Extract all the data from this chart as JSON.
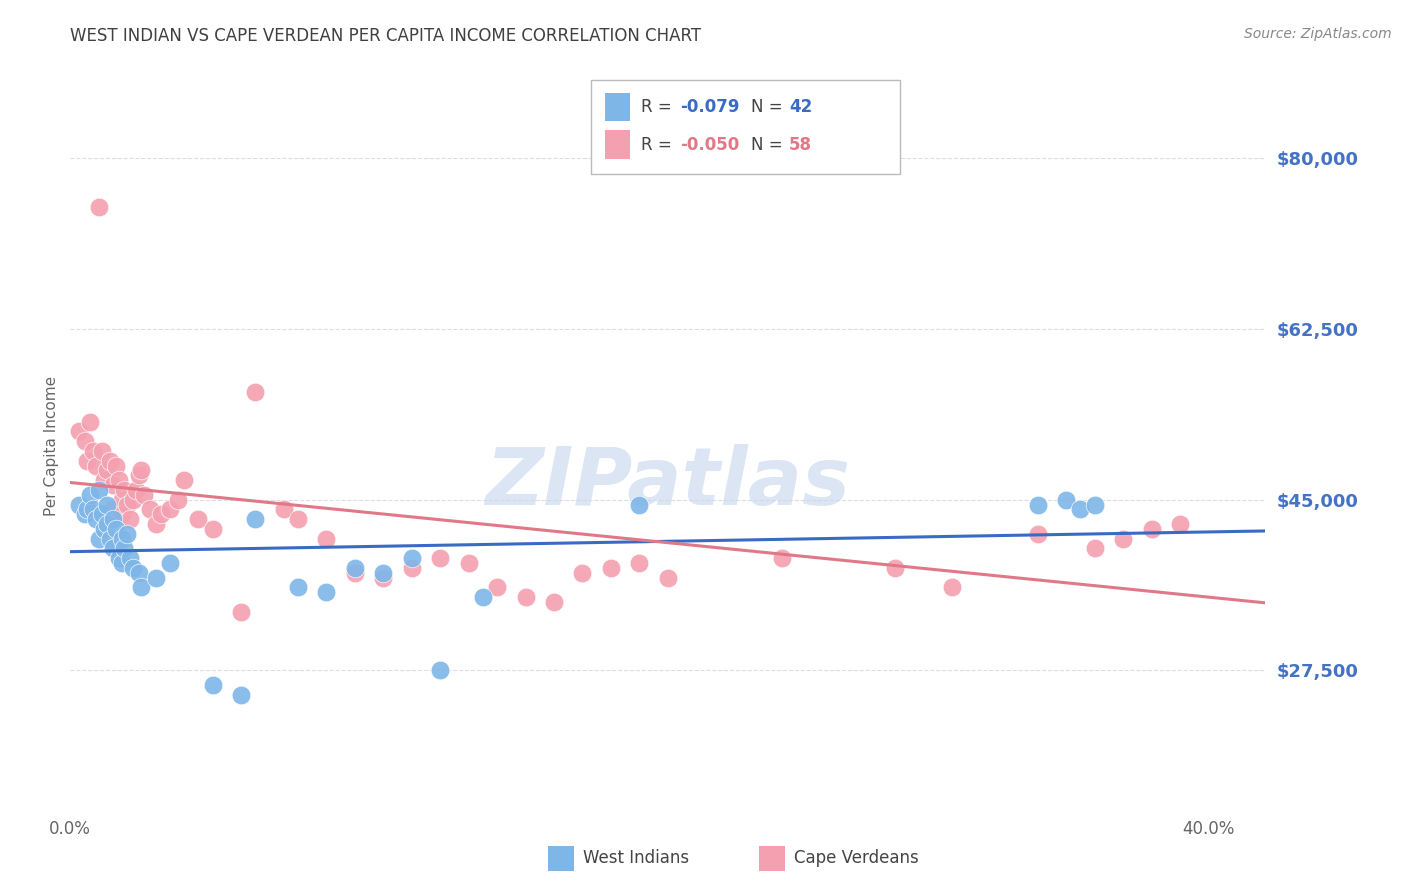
{
  "title": "WEST INDIAN VS CAPE VERDEAN PER CAPITA INCOME CORRELATION CHART",
  "source": "Source: ZipAtlas.com",
  "ylabel": "Per Capita Income",
  "ytick_labels": [
    "$27,500",
    "$45,000",
    "$62,500",
    "$80,000"
  ],
  "ytick_values": [
    27500,
    45000,
    62500,
    80000
  ],
  "ylim": [
    13000,
    88000
  ],
  "xlim": [
    0.0,
    0.42
  ],
  "west_indian_color": "#7EB6E8",
  "cape_verdean_color": "#F4A0B0",
  "west_indian_line_color": "#3A6BC4",
  "cape_verdean_line_color": "#E07888",
  "watermark": "ZIPatlas",
  "background_color": "#FFFFFF",
  "grid_color": "#DDDDDD",
  "title_color": "#404040",
  "axis_color": "#4472C4",
  "west_indian_x": [
    0.003,
    0.005,
    0.006,
    0.007,
    0.008,
    0.009,
    0.01,
    0.01,
    0.011,
    0.012,
    0.013,
    0.013,
    0.014,
    0.015,
    0.015,
    0.016,
    0.017,
    0.018,
    0.018,
    0.019,
    0.02,
    0.021,
    0.022,
    0.024,
    0.025,
    0.03,
    0.035,
    0.05,
    0.06,
    0.065,
    0.08,
    0.09,
    0.1,
    0.11,
    0.12,
    0.13,
    0.145,
    0.2,
    0.34,
    0.35,
    0.355,
    0.36
  ],
  "west_indian_y": [
    44500,
    43500,
    44000,
    45500,
    44000,
    43000,
    46000,
    41000,
    43500,
    42000,
    44500,
    42500,
    41000,
    43000,
    40000,
    42000,
    39000,
    41000,
    38500,
    40000,
    41500,
    39000,
    38000,
    37500,
    36000,
    37000,
    38500,
    26000,
    25000,
    43000,
    36000,
    35500,
    38000,
    37500,
    39000,
    27500,
    35000,
    44500,
    44500,
    45000,
    44000,
    44500
  ],
  "cape_verdean_x": [
    0.003,
    0.005,
    0.006,
    0.007,
    0.008,
    0.009,
    0.01,
    0.011,
    0.012,
    0.013,
    0.014,
    0.015,
    0.015,
    0.016,
    0.017,
    0.018,
    0.018,
    0.019,
    0.02,
    0.021,
    0.022,
    0.023,
    0.024,
    0.025,
    0.026,
    0.028,
    0.03,
    0.032,
    0.035,
    0.038,
    0.04,
    0.045,
    0.05,
    0.06,
    0.065,
    0.075,
    0.08,
    0.09,
    0.1,
    0.11,
    0.12,
    0.13,
    0.14,
    0.15,
    0.16,
    0.17,
    0.18,
    0.19,
    0.2,
    0.21,
    0.25,
    0.29,
    0.31,
    0.34,
    0.36,
    0.37,
    0.38,
    0.39
  ],
  "cape_verdean_y": [
    52000,
    51000,
    49000,
    53000,
    50000,
    48500,
    75000,
    50000,
    47000,
    48000,
    49000,
    46500,
    44000,
    48500,
    47000,
    45000,
    43500,
    46000,
    44500,
    43000,
    45000,
    46000,
    47500,
    48000,
    45500,
    44000,
    42500,
    43500,
    44000,
    45000,
    47000,
    43000,
    42000,
    33500,
    56000,
    44000,
    43000,
    41000,
    37500,
    37000,
    38000,
    39000,
    38500,
    36000,
    35000,
    34500,
    37500,
    38000,
    38500,
    37000,
    39000,
    38000,
    36000,
    41500,
    40000,
    41000,
    42000,
    42500
  ]
}
